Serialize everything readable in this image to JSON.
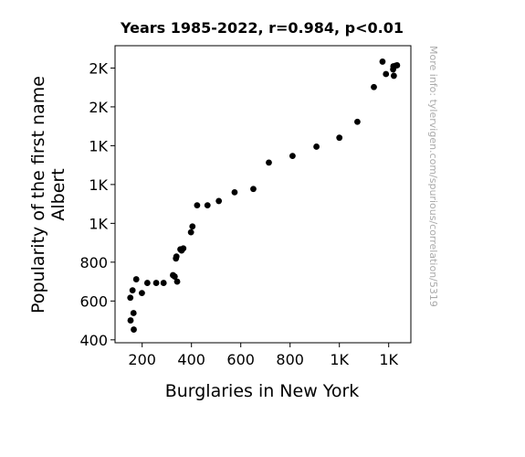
{
  "chart_data": {
    "type": "scatter",
    "title": "Years 1985-2022, r=0.984, p<0.01",
    "xlabel": "Burglaries in New York",
    "ylabel_lines": [
      "Popularity of the first name",
      "Albert"
    ],
    "watermark": "More info: tylervigen.com/spurious/correlation/5319",
    "xlim": [
      90,
      1290
    ],
    "ylim": [
      385,
      1915
    ],
    "x_ticks": [
      {
        "value": 200,
        "label": "200"
      },
      {
        "value": 400,
        "label": "400"
      },
      {
        "value": 600,
        "label": "600"
      },
      {
        "value": 800,
        "label": "800"
      },
      {
        "value": 1000,
        "label": "1K"
      },
      {
        "value": 1200,
        "label": "1K"
      }
    ],
    "y_ticks": [
      {
        "value": 400,
        "label": "400"
      },
      {
        "value": 600,
        "label": "600"
      },
      {
        "value": 800,
        "label": "800"
      },
      {
        "value": 1000,
        "label": "1K"
      },
      {
        "value": 1200,
        "label": "1K"
      },
      {
        "value": 1400,
        "label": "1K"
      },
      {
        "value": 1600,
        "label": "2K"
      },
      {
        "value": 1800,
        "label": "2K"
      }
    ],
    "marker_color": "#000000",
    "grid": false,
    "points": [
      {
        "x": 152,
        "y": 617
      },
      {
        "x": 153,
        "y": 500
      },
      {
        "x": 161,
        "y": 655
      },
      {
        "x": 165,
        "y": 538
      },
      {
        "x": 166,
        "y": 453
      },
      {
        "x": 176,
        "y": 712
      },
      {
        "x": 199,
        "y": 641
      },
      {
        "x": 221,
        "y": 693
      },
      {
        "x": 257,
        "y": 693
      },
      {
        "x": 287,
        "y": 693
      },
      {
        "x": 325,
        "y": 733
      },
      {
        "x": 332,
        "y": 726
      },
      {
        "x": 337,
        "y": 819
      },
      {
        "x": 339,
        "y": 829
      },
      {
        "x": 342,
        "y": 700
      },
      {
        "x": 355,
        "y": 866
      },
      {
        "x": 360,
        "y": 860
      },
      {
        "x": 367,
        "y": 871
      },
      {
        "x": 398,
        "y": 954
      },
      {
        "x": 404,
        "y": 984
      },
      {
        "x": 423,
        "y": 1093
      },
      {
        "x": 465,
        "y": 1093
      },
      {
        "x": 511,
        "y": 1115
      },
      {
        "x": 575,
        "y": 1160
      },
      {
        "x": 651,
        "y": 1177
      },
      {
        "x": 714,
        "y": 1313
      },
      {
        "x": 810,
        "y": 1347
      },
      {
        "x": 907,
        "y": 1395
      },
      {
        "x": 1000,
        "y": 1441
      },
      {
        "x": 1073,
        "y": 1523
      },
      {
        "x": 1140,
        "y": 1702
      },
      {
        "x": 1175,
        "y": 1833
      },
      {
        "x": 1189,
        "y": 1769
      },
      {
        "x": 1218,
        "y": 1793
      },
      {
        "x": 1219,
        "y": 1809
      },
      {
        "x": 1221,
        "y": 1760
      },
      {
        "x": 1228,
        "y": 1812
      },
      {
        "x": 1234,
        "y": 1814
      }
    ]
  }
}
